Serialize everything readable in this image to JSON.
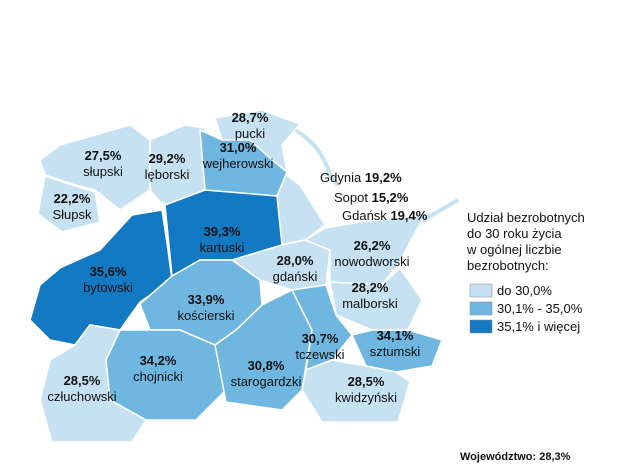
{
  "map": {
    "regions": [
      {
        "name": "słupski",
        "value": 27.5,
        "value_label": "27,5%",
        "color": "#c6e2f2"
      },
      {
        "name": "Słupsk",
        "value": 22.2,
        "value_label": "22,2%",
        "color": "#c6e2f2"
      },
      {
        "name": "lęborski",
        "value": 29.2,
        "value_label": "29,2%",
        "color": "#c6e2f2"
      },
      {
        "name": "pucki",
        "value": 28.7,
        "value_label": "28,7%",
        "color": "#c6e2f2"
      },
      {
        "name": "wejherowski",
        "value": 31.0,
        "value_label": "31,0%",
        "color": "#6fb6e0"
      },
      {
        "name": "bytowski",
        "value": 35.6,
        "value_label": "35,6%",
        "color": "#1479c3"
      },
      {
        "name": "kartuski",
        "value": 39.3,
        "value_label": "39,3%",
        "color": "#1479c3"
      },
      {
        "name": "gdański",
        "value": 28.0,
        "value_label": "28,0%",
        "color": "#c6e2f2"
      },
      {
        "name": "nowodworski",
        "value": 26.2,
        "value_label": "26,2%",
        "color": "#c6e2f2"
      },
      {
        "name": "malborski",
        "value": 28.2,
        "value_label": "28,2%",
        "color": "#c6e2f2"
      },
      {
        "name": "kościerski",
        "value": 33.9,
        "value_label": "33,9%",
        "color": "#6fb6e0"
      },
      {
        "name": "chojnicki",
        "value": 34.2,
        "value_label": "34,2%",
        "color": "#6fb6e0"
      },
      {
        "name": "człuchowski",
        "value": 28.5,
        "value_label": "28,5%",
        "color": "#c6e2f2"
      },
      {
        "name": "starogardzki",
        "value": 30.8,
        "value_label": "30,8%",
        "color": "#6fb6e0"
      },
      {
        "name": "tczewski",
        "value": 30.7,
        "value_label": "30,7%",
        "color": "#6fb6e0"
      },
      {
        "name": "sztumski",
        "value": 34.1,
        "value_label": "34,1%",
        "color": "#6fb6e0"
      },
      {
        "name": "kwidzyński",
        "value": 28.5,
        "value_label": "28,5%",
        "color": "#c6e2f2"
      }
    ],
    "cities": [
      {
        "name": "Gdynia",
        "value": 19.2,
        "value_label": "19,2%"
      },
      {
        "name": "Sopot",
        "value": 15.2,
        "value_label": "15,2%"
      },
      {
        "name": "Gdańsk",
        "value": 19.4,
        "value_label": "19,4%"
      }
    ],
    "legend": {
      "title_lines": [
        "Udział bezrobotnych",
        "do 30 roku życia",
        "w ogólnej liczbie",
        "bezrobotnych:"
      ],
      "items": [
        {
          "label": "do 30,0%",
          "color": "#c6e2f2"
        },
        {
          "label": "30,1% - 35,0%",
          "color": "#6fb6e0"
        },
        {
          "label": "35,1% i więcej",
          "color": "#1479c3"
        }
      ]
    },
    "footer": {
      "label": "Województwo:",
      "value": 28.3,
      "value_label": "28,3%"
    }
  }
}
